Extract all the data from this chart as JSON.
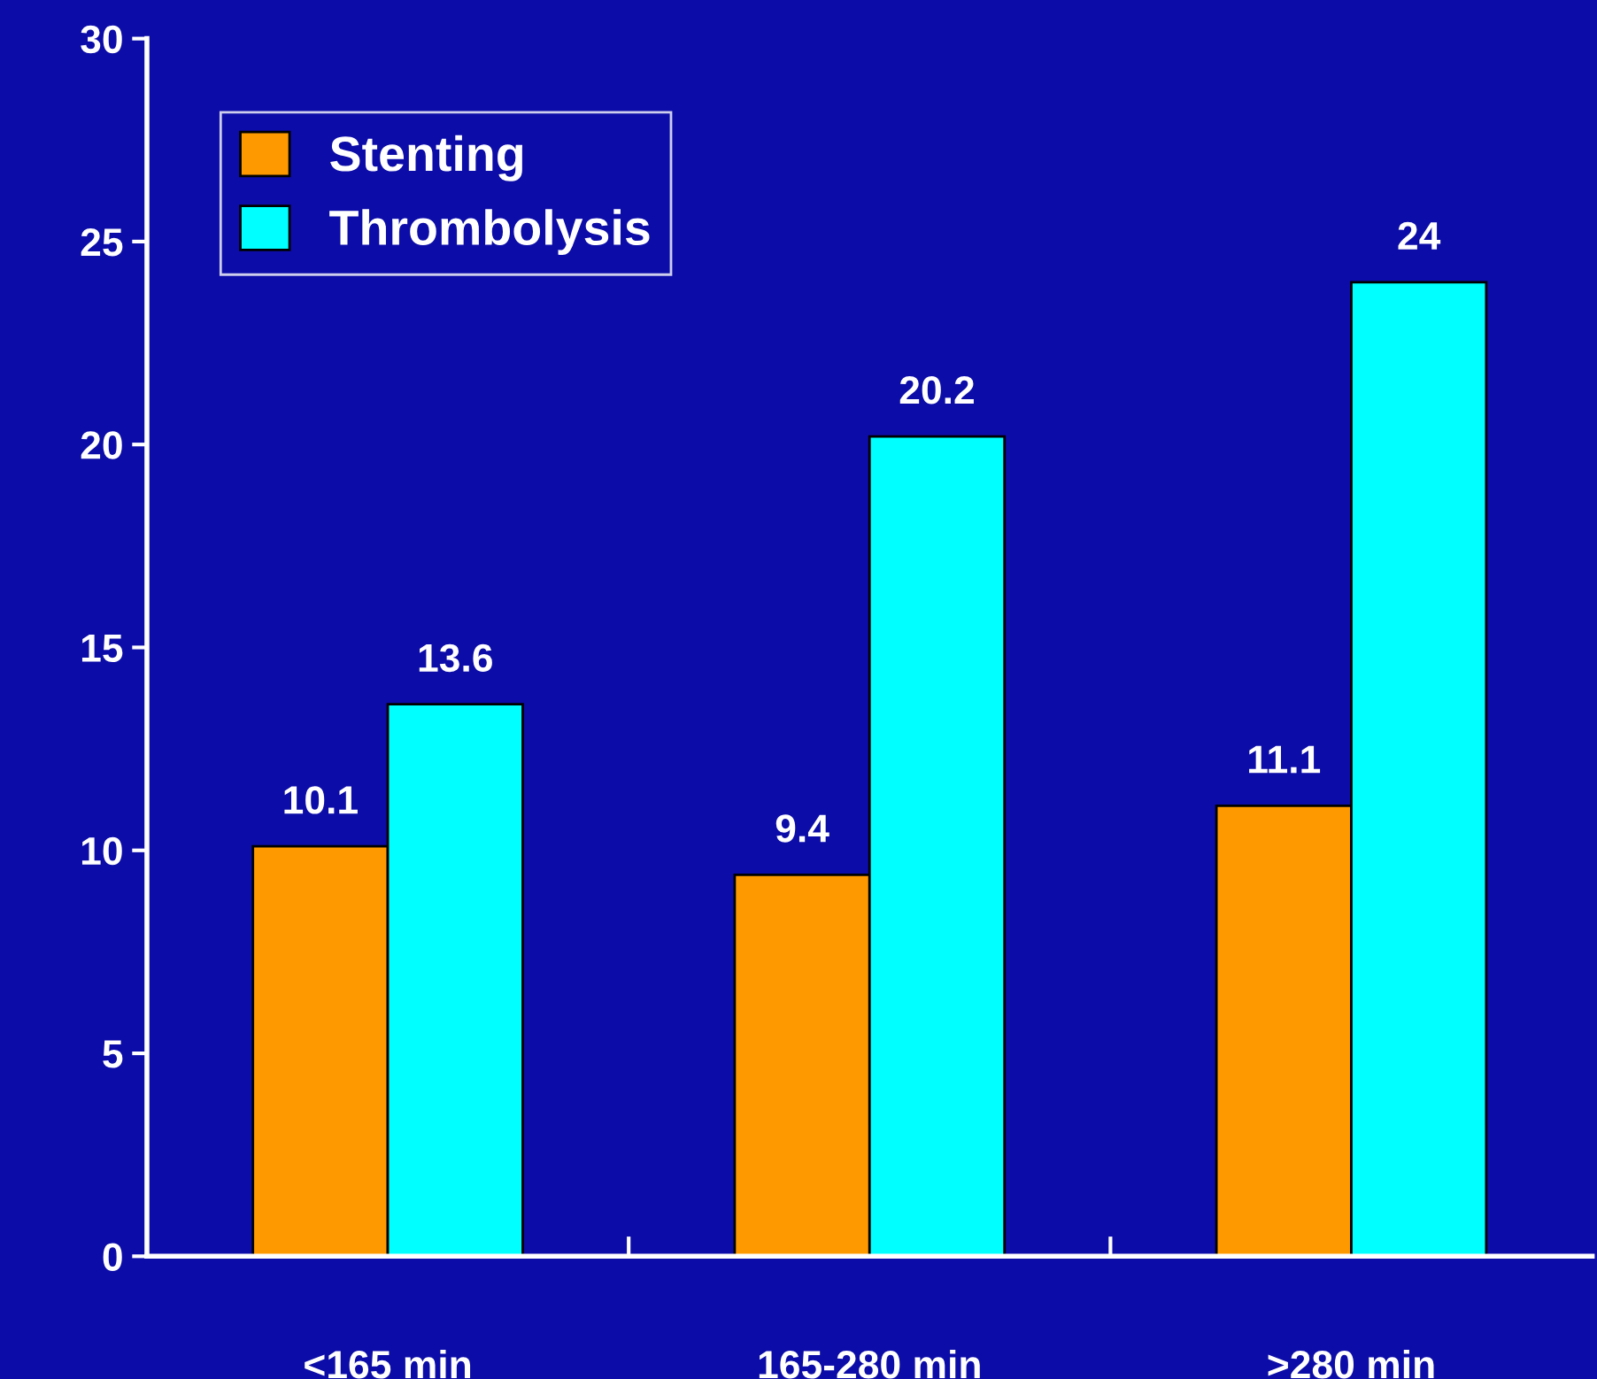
{
  "chart_data": {
    "type": "bar",
    "categories": [
      "<165 min",
      "165-280 min",
      ">280 min"
    ],
    "series": [
      {
        "name": "Stenting",
        "color": "#ff9900",
        "values": [
          10.1,
          9.4,
          11.1
        ]
      },
      {
        "name": "Thrombolysis",
        "color": "#00ffff",
        "values": [
          13.6,
          20.2,
          24
        ]
      }
    ],
    "ylim": [
      0,
      30
    ],
    "yticks": [
      0,
      5,
      10,
      15,
      20,
      25,
      30
    ],
    "data_labels": true,
    "legend": "top left",
    "grid": false
  }
}
